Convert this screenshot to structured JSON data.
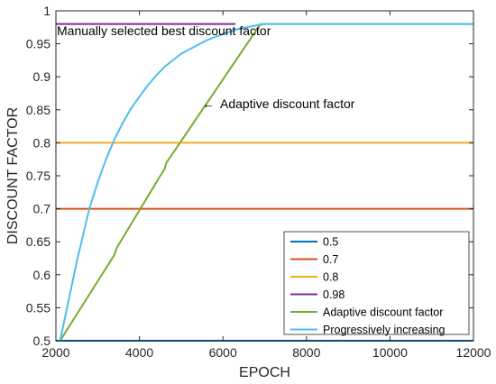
{
  "chart_data": {
    "type": "line",
    "xlabel": "EPOCH",
    "ylabel": "DISCOUNT FACTOR",
    "xlim": [
      2000,
      12000
    ],
    "ylim": [
      0.5,
      1.0
    ],
    "xticks": [
      2000,
      4000,
      6000,
      8000,
      10000,
      12000
    ],
    "xtick_labels": [
      "2000",
      "4000",
      "6000",
      "8000",
      "10000",
      "12000"
    ],
    "yticks": [
      0.5,
      0.55,
      0.6,
      0.65,
      0.7,
      0.75,
      0.8,
      0.85,
      0.9,
      0.95,
      1.0
    ],
    "ytick_labels": [
      "0.5",
      "0.55",
      "0.6",
      "0.65",
      "0.7",
      "0.75",
      "0.8",
      "0.85",
      "0.9",
      "0.95",
      "1"
    ],
    "grid": false,
    "legend_position": "bottom-right",
    "series": [
      {
        "name": "0.5",
        "color": "#0072BD",
        "x": [
          2000,
          12000
        ],
        "y": [
          0.5,
          0.5
        ]
      },
      {
        "name": "0.7",
        "color": "#D95319",
        "x": [
          2000,
          12000
        ],
        "y": [
          0.7,
          0.7
        ]
      },
      {
        "name": "0.8",
        "color": "#EDB120",
        "x": [
          2000,
          12000
        ],
        "y": [
          0.8,
          0.8
        ]
      },
      {
        "name": "0.98",
        "color": "#7E2F8E",
        "x": [
          2000,
          6300
        ],
        "y": [
          0.98,
          0.98
        ]
      },
      {
        "name": "Adaptive discount factor",
        "color": "#77AC30",
        "x": [
          2100,
          3400,
          3450,
          4500,
          4600,
          4650,
          6900,
          12000
        ],
        "y": [
          0.5,
          0.63,
          0.64,
          0.75,
          0.76,
          0.77,
          0.98,
          0.98
        ]
      },
      {
        "name": "Progressively increasing",
        "color": "#4DBEEE",
        "x": [
          2100,
          2500,
          2800,
          3000,
          3200,
          3400,
          3600,
          3800,
          4000,
          4200,
          4400,
          4600,
          4800,
          5000,
          5300,
          5600,
          6000,
          6400,
          6800,
          7000,
          12000
        ],
        "y": [
          0.5,
          0.62,
          0.7,
          0.74,
          0.775,
          0.805,
          0.83,
          0.852,
          0.87,
          0.887,
          0.902,
          0.915,
          0.925,
          0.935,
          0.945,
          0.955,
          0.965,
          0.973,
          0.978,
          0.98,
          0.98
        ]
      }
    ],
    "annotations": [
      {
        "text": "Manually selected best discount factor",
        "x": 2050,
        "y": 0.971
      },
      {
        "text": "Adaptive discount factor",
        "arrow_to": {
          "x": 5700,
          "y": 0.86
        },
        "arrow_symbol": "←"
      }
    ]
  }
}
